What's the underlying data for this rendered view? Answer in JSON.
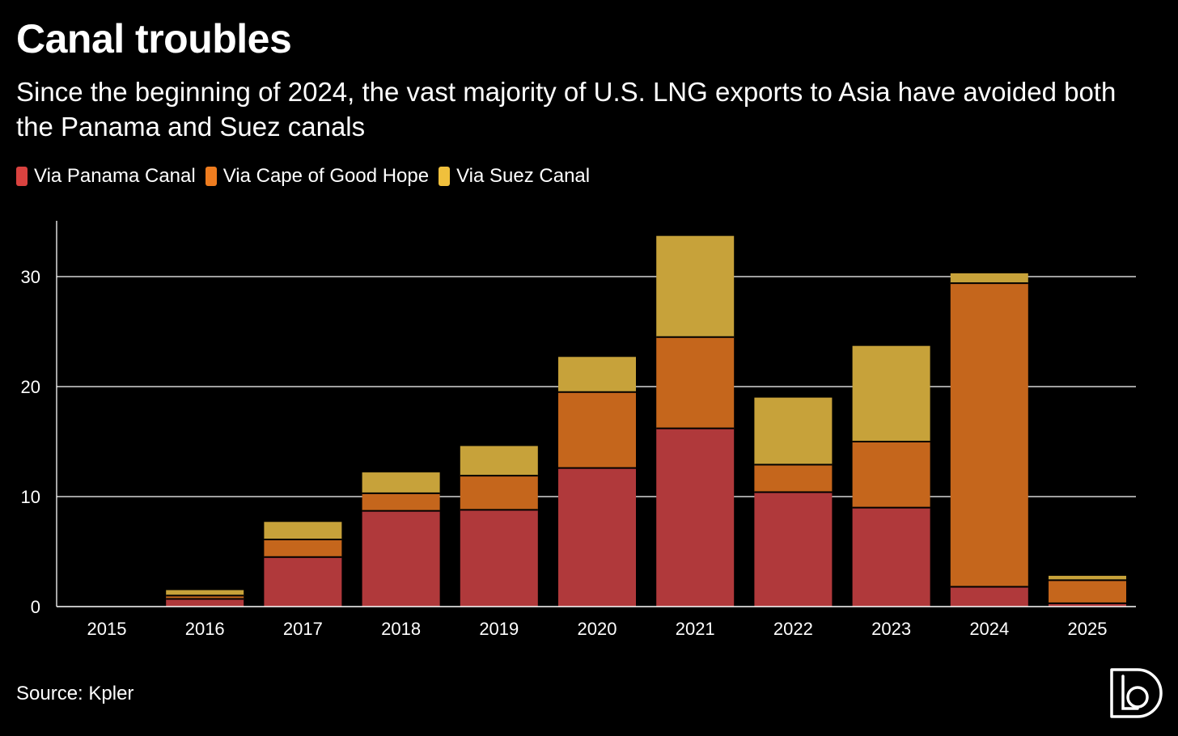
{
  "title": "Canal troubles",
  "subtitle": "Since the beginning of 2024, the vast majority of U.S. LNG exports to Asia have avoided both the Panama and Suez canals",
  "source": "Source: Kpler",
  "logo_icon": "brand-logo-icon",
  "colors": {
    "background": "#000000",
    "panama": "#B0393B",
    "cape": "#C5661C",
    "suez": "#C7A23A",
    "panama_legend": "#D9423F",
    "cape_legend": "#EE7C1F",
    "suez_legend": "#F0C03C"
  },
  "legend": [
    {
      "label": "Via Panama Canal",
      "color_key": "panama_legend"
    },
    {
      "label": "Via Cape of Good Hope",
      "color_key": "cape_legend"
    },
    {
      "label": "Via Suez Canal",
      "color_key": "suez_legend"
    }
  ],
  "chart_data": {
    "type": "bar",
    "stacked": true,
    "categories": [
      "2015",
      "2016",
      "2017",
      "2018",
      "2019",
      "2020",
      "2021",
      "2022",
      "2023",
      "2024",
      "2025"
    ],
    "series": [
      {
        "name": "Via Panama Canal",
        "values": [
          0,
          0.7,
          4.5,
          8.7,
          8.8,
          12.6,
          16.2,
          10.4,
          9.0,
          1.8,
          0.3
        ]
      },
      {
        "name": "Via Cape of Good Hope",
        "values": [
          0,
          0.3,
          1.6,
          1.6,
          3.1,
          6.9,
          8.3,
          2.5,
          6.0,
          27.6,
          2.1
        ]
      },
      {
        "name": "Via Suez Canal",
        "values": [
          0,
          0.5,
          1.6,
          1.9,
          2.7,
          3.2,
          9.2,
          6.1,
          8.7,
          0.9,
          0.4
        ]
      }
    ],
    "ylim": [
      0,
      35
    ],
    "yticks": [
      "0",
      "10",
      "20",
      "30"
    ],
    "xlabel": "",
    "ylabel": "",
    "grid": true,
    "legend_position": "top-left"
  }
}
